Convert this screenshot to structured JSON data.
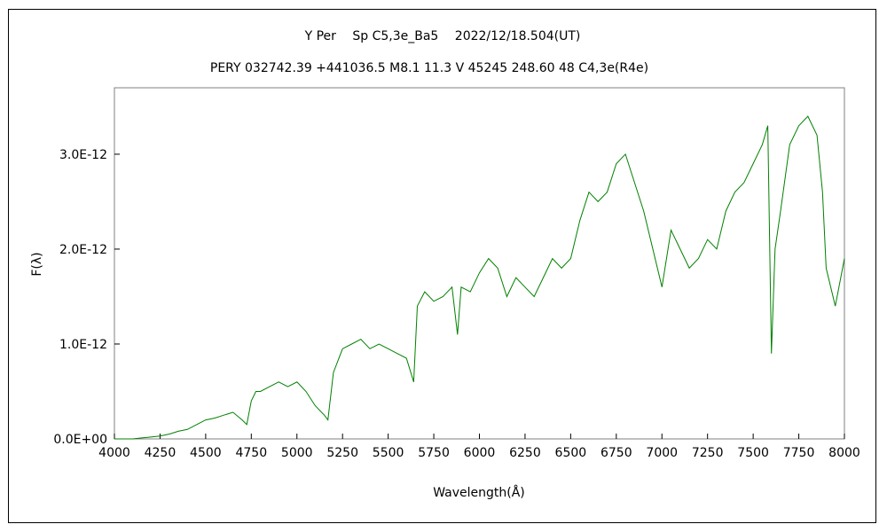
{
  "chart_data": {
    "type": "line",
    "title": "Y Per　 Sp C5,3e_Ba5　 2022/12/18.504(UT)",
    "subtitle": "PERY 032742.39 +441036.5 M8.1 11.3 V 45245 248.60 48 C4,3e(R4e)",
    "xlabel": "Wavelength(Å)",
    "ylabel": "F(λ)",
    "xlim": [
      4000,
      8000
    ],
    "ylim": [
      0,
      3.7e-12
    ],
    "x_ticks": [
      4000,
      4250,
      4500,
      4750,
      5000,
      5250,
      5500,
      5750,
      6000,
      6250,
      6500,
      6750,
      7000,
      7250,
      7500,
      7750,
      8000
    ],
    "x_tick_labels": [
      "4000",
      "4250",
      "4500",
      "4750",
      "5000",
      "5250",
      "5500",
      "5750",
      "6000",
      "6250",
      "6500",
      "6750",
      "7000",
      "7250",
      "7500",
      "7750",
      "8000"
    ],
    "y_ticks": [
      0,
      1e-12,
      2e-12,
      3e-12
    ],
    "y_tick_labels": [
      "0.0E+00",
      "1.0E-12",
      "2.0E-12",
      "3.0E-12"
    ],
    "grid": false,
    "line_color": "#008000",
    "series": [
      {
        "x": [
          4000,
          4100,
          4150,
          4200,
          4250,
          4300,
          4350,
          4400,
          4450,
          4500,
          4550,
          4600,
          4650,
          4700,
          4725,
          4750,
          4775,
          4800,
          4850,
          4900,
          4950,
          5000,
          5050,
          5100,
          5150,
          5170,
          5200,
          5250,
          5300,
          5350,
          5400,
          5450,
          5500,
          5550,
          5600,
          5640,
          5660,
          5700,
          5750,
          5800,
          5850,
          5880,
          5900,
          5950,
          6000,
          6050,
          6100,
          6150,
          6200,
          6250,
          6300,
          6350,
          6400,
          6450,
          6500,
          6550,
          6600,
          6650,
          6700,
          6750,
          6800,
          6850,
          6900,
          6950,
          7000,
          7050,
          7100,
          7150,
          7200,
          7250,
          7300,
          7350,
          7400,
          7450,
          7500,
          7550,
          7580,
          7600,
          7620,
          7650,
          7700,
          7750,
          7800,
          7850,
          7880,
          7900,
          7950,
          8000
        ],
        "y": [
          0,
          0,
          1e-14,
          2e-14,
          3e-14,
          5e-14,
          8e-14,
          1e-13,
          1.5e-13,
          2e-13,
          2.2e-13,
          2.5e-13,
          2.8e-13,
          2e-13,
          1.5e-13,
          4e-13,
          5e-13,
          5e-13,
          5.5e-13,
          6e-13,
          5.5e-13,
          6e-13,
          5e-13,
          3.5e-13,
          2.5e-13,
          2e-13,
          7e-13,
          9.5e-13,
          1e-12,
          1.05e-12,
          9.5e-13,
          1e-12,
          9.5e-13,
          9e-13,
          8.5e-13,
          6e-13,
          1.4e-12,
          1.55e-12,
          1.45e-12,
          1.5e-12,
          1.6e-12,
          1.1e-12,
          1.6e-12,
          1.55e-12,
          1.75e-12,
          1.9e-12,
          1.8e-12,
          1.5e-12,
          1.7e-12,
          1.6e-12,
          1.5e-12,
          1.7e-12,
          1.9e-12,
          1.8e-12,
          1.9e-12,
          2.3e-12,
          2.6e-12,
          2.5e-12,
          2.6e-12,
          2.9e-12,
          3e-12,
          2.7e-12,
          2.4e-12,
          2e-12,
          1.6e-12,
          2.2e-12,
          2e-12,
          1.8e-12,
          1.9e-12,
          2.1e-12,
          2e-12,
          2.4e-12,
          2.6e-12,
          2.7e-12,
          2.9e-12,
          3.1e-12,
          3.3e-12,
          9e-13,
          2e-12,
          2.4e-12,
          3.1e-12,
          3.3e-12,
          3.4e-12,
          3.2e-12,
          2.6e-12,
          1.8e-12,
          1.4e-12,
          1.9e-12
        ]
      }
    ]
  }
}
